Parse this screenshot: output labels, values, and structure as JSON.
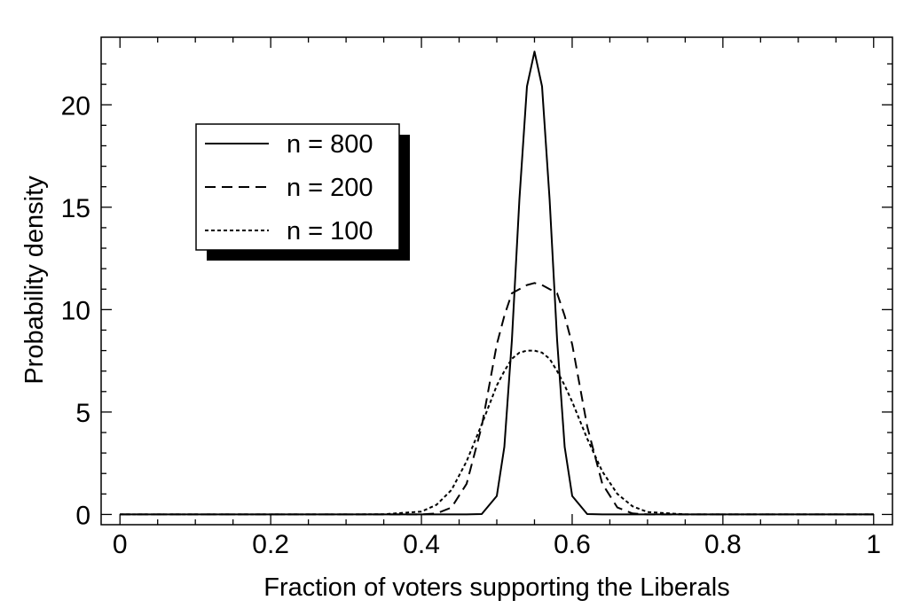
{
  "chart_data": {
    "type": "line",
    "title": "",
    "xlabel": "Fraction of voters supporting the Liberals",
    "ylabel": "Probability density",
    "xlim": [
      -0.025,
      1.025
    ],
    "ylim": [
      -0.5,
      23.3
    ],
    "x_ticks": [
      {
        "value": 0,
        "label": "0"
      },
      {
        "value": 0.2,
        "label": "0.2"
      },
      {
        "value": 0.4,
        "label": "0.4"
      },
      {
        "value": 0.6,
        "label": "0.6"
      },
      {
        "value": 0.8,
        "label": "0.8"
      },
      {
        "value": 1,
        "label": "1"
      }
    ],
    "y_ticks": [
      {
        "value": 0,
        "label": "0"
      },
      {
        "value": 5,
        "label": "5"
      },
      {
        "value": 10,
        "label": "10"
      },
      {
        "value": 15,
        "label": "15"
      },
      {
        "value": 20,
        "label": "20"
      }
    ],
    "grid": false,
    "legend_position": "upper-left",
    "x": [
      0,
      0.05,
      0.1,
      0.15,
      0.2,
      0.25,
      0.3,
      0.35,
      0.4,
      0.42,
      0.44,
      0.46,
      0.48,
      0.5,
      0.51,
      0.52,
      0.53,
      0.54,
      0.55,
      0.56,
      0.57,
      0.58,
      0.59,
      0.6,
      0.62,
      0.64,
      0.66,
      0.68,
      0.7,
      0.75,
      0.8,
      0.85,
      0.9,
      0.95,
      1
    ],
    "series": [
      {
        "name": "n = 800",
        "style": "solid",
        "values": [
          0,
          0,
          0,
          0,
          0,
          0,
          0,
          0,
          0,
          0,
          0,
          0,
          0.02,
          0.9,
          3.3,
          8.5,
          15.4,
          20.9,
          22.6,
          20.9,
          15.4,
          8.5,
          3.3,
          0.9,
          0.02,
          0,
          0,
          0,
          0,
          0,
          0,
          0,
          0,
          0,
          0
        ]
      },
      {
        "name": "n = 200",
        "style": "dashed",
        "values": [
          0,
          0,
          0,
          0,
          0,
          0,
          0,
          0,
          0.003,
          0.05,
          0.34,
          1.5,
          4.3,
          8.3,
          9.7,
          10.8,
          11.0,
          11.2,
          11.3,
          11.2,
          11.0,
          10.8,
          9.7,
          8.3,
          4.3,
          1.5,
          0.34,
          0.05,
          0.003,
          0,
          0,
          0,
          0,
          0,
          0
        ]
      },
      {
        "name": "n = 100",
        "style": "dotted",
        "values": [
          0,
          0,
          0,
          0,
          0,
          0,
          0,
          0.01,
          0.14,
          0.47,
          1.2,
          2.6,
          4.4,
          6.3,
          7.0,
          7.6,
          7.9,
          8.0,
          8.0,
          7.9,
          7.6,
          7.0,
          6.3,
          5.5,
          3.7,
          2.1,
          1.0,
          0.4,
          0.12,
          0.004,
          0,
          0,
          0,
          0,
          0
        ]
      }
    ]
  }
}
